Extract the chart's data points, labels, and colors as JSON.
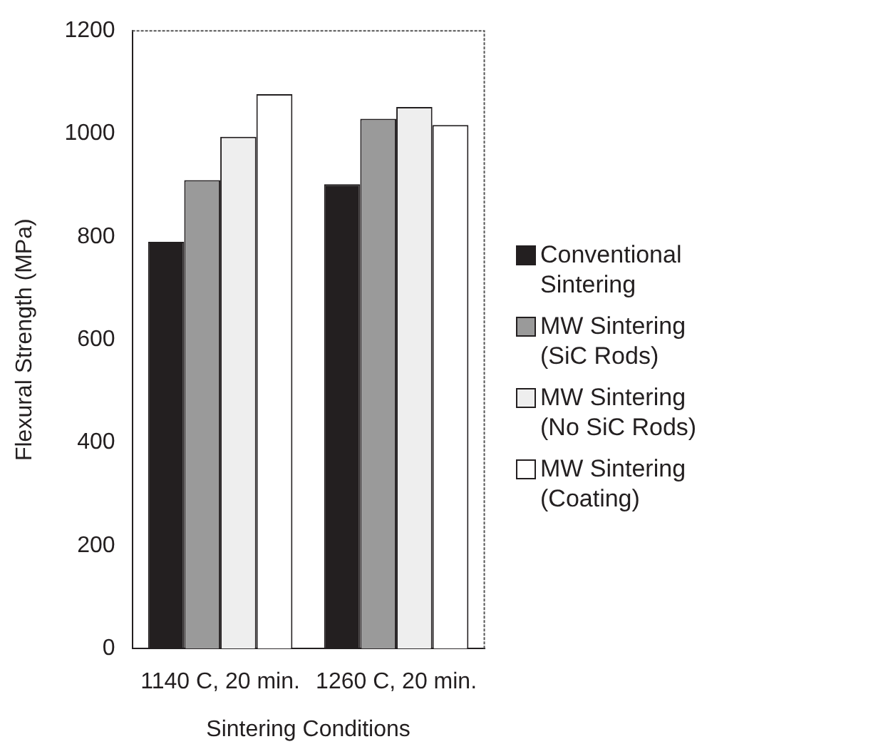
{
  "chart_data": {
    "type": "bar",
    "xlabel": "Sintering Conditions",
    "ylabel": "Flexural Strength (MPa)",
    "categories": [
      "1140 C, 20 min.",
      "1260 C, 20 min."
    ],
    "series": [
      {
        "name": "Conventional Sintering",
        "color": "#231f20",
        "values": [
          790,
          902
        ]
      },
      {
        "name": "MW Sintering (SiC Rods)",
        "color": "#9a9a9a",
        "values": [
          910,
          1029
        ]
      },
      {
        "name": "MW Sintering (No SiC Rods)",
        "color": "#eeeeee",
        "values": [
          994,
          1052
        ]
      },
      {
        "name": "MW Sintering (Coating)",
        "color": "#ffffff",
        "values": [
          1077,
          1017
        ]
      }
    ],
    "ylim": [
      0,
      1200
    ],
    "yticks": [
      0,
      200,
      400,
      600,
      800,
      1000,
      1200
    ],
    "grid": false,
    "legend": "right"
  }
}
